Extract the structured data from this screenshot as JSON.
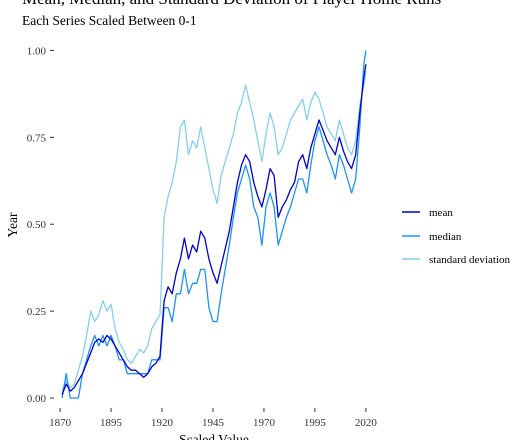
{
  "chart_data": {
    "type": "line",
    "title": "Mean, Median, and Standard Deviation of Player Home Runs",
    "subtitle": "Each Series Scaled Between 0-1",
    "xlabel": "Scaled Value",
    "ylabel": "Year",
    "xlim": [
      1868,
      2023
    ],
    "ylim": [
      -0.02,
      1.03
    ],
    "x_ticks": [
      1870,
      1895,
      1920,
      1945,
      1970,
      1995,
      2020
    ],
    "y_ticks": [
      "0.00",
      "0.25",
      "0.50",
      "0.75",
      "1.00"
    ],
    "y_tick_values": [
      0,
      0.25,
      0.5,
      0.75,
      1
    ],
    "grid": false,
    "legend_position": "right",
    "series": [
      {
        "name": "mean",
        "color": "#0000cd",
        "x": [
          1871,
          1873,
          1875,
          1877,
          1879,
          1881,
          1883,
          1885,
          1887,
          1889,
          1891,
          1893,
          1895,
          1897,
          1899,
          1901,
          1903,
          1905,
          1907,
          1909,
          1911,
          1913,
          1915,
          1917,
          1919,
          1921,
          1923,
          1925,
          1927,
          1929,
          1931,
          1933,
          1935,
          1937,
          1939,
          1941,
          1943,
          1945,
          1947,
          1949,
          1951,
          1953,
          1955,
          1957,
          1959,
          1961,
          1963,
          1965,
          1967,
          1969,
          1971,
          1973,
          1975,
          1977,
          1979,
          1981,
          1983,
          1985,
          1987,
          1989,
          1991,
          1993,
          1995,
          1997,
          1999,
          2001,
          2003,
          2005,
          2007,
          2009,
          2011,
          2013,
          2015,
          2017,
          2019,
          2020
        ],
        "values": [
          0.01,
          0.04,
          0.02,
          0.03,
          0.05,
          0.07,
          0.1,
          0.13,
          0.16,
          0.17,
          0.16,
          0.18,
          0.17,
          0.15,
          0.13,
          0.11,
          0.09,
          0.08,
          0.08,
          0.07,
          0.06,
          0.07,
          0.09,
          0.1,
          0.12,
          0.28,
          0.32,
          0.3,
          0.36,
          0.4,
          0.46,
          0.4,
          0.44,
          0.42,
          0.48,
          0.46,
          0.4,
          0.36,
          0.33,
          0.38,
          0.43,
          0.48,
          0.55,
          0.62,
          0.67,
          0.7,
          0.68,
          0.62,
          0.58,
          0.55,
          0.6,
          0.66,
          0.64,
          0.52,
          0.55,
          0.57,
          0.6,
          0.62,
          0.68,
          0.7,
          0.66,
          0.72,
          0.76,
          0.8,
          0.77,
          0.74,
          0.72,
          0.7,
          0.75,
          0.71,
          0.68,
          0.66,
          0.7,
          0.82,
          0.92,
          0.96
        ]
      },
      {
        "name": "median",
        "color": "#1e90ff",
        "x": [
          1871,
          1873,
          1875,
          1877,
          1879,
          1881,
          1883,
          1885,
          1887,
          1889,
          1891,
          1893,
          1895,
          1897,
          1899,
          1901,
          1903,
          1905,
          1907,
          1909,
          1911,
          1913,
          1915,
          1917,
          1919,
          1921,
          1923,
          1925,
          1927,
          1929,
          1931,
          1933,
          1935,
          1937,
          1939,
          1941,
          1943,
          1945,
          1947,
          1949,
          1951,
          1953,
          1955,
          1957,
          1959,
          1961,
          1963,
          1965,
          1967,
          1969,
          1971,
          1973,
          1975,
          1977,
          1979,
          1981,
          1983,
          1985,
          1987,
          1989,
          1991,
          1993,
          1995,
          1997,
          1999,
          2001,
          2003,
          2005,
          2007,
          2009,
          2011,
          2013,
          2015,
          2017,
          2019,
          2020
        ],
        "values": [
          0.0,
          0.07,
          0.0,
          0.0,
          0.0,
          0.07,
          0.11,
          0.15,
          0.18,
          0.15,
          0.18,
          0.15,
          0.18,
          0.15,
          0.11,
          0.11,
          0.07,
          0.07,
          0.07,
          0.07,
          0.07,
          0.07,
          0.11,
          0.11,
          0.11,
          0.26,
          0.26,
          0.22,
          0.3,
          0.3,
          0.37,
          0.3,
          0.33,
          0.33,
          0.37,
          0.37,
          0.26,
          0.22,
          0.22,
          0.3,
          0.37,
          0.44,
          0.52,
          0.59,
          0.63,
          0.67,
          0.63,
          0.55,
          0.52,
          0.44,
          0.55,
          0.59,
          0.55,
          0.44,
          0.48,
          0.52,
          0.55,
          0.59,
          0.63,
          0.63,
          0.59,
          0.67,
          0.74,
          0.78,
          0.74,
          0.7,
          0.67,
          0.63,
          0.7,
          0.67,
          0.63,
          0.59,
          0.63,
          0.78,
          0.96,
          1.0
        ]
      },
      {
        "name": "standard deviation",
        "color": "#87ceeb",
        "x": [
          1871,
          1873,
          1875,
          1877,
          1879,
          1881,
          1883,
          1885,
          1887,
          1889,
          1891,
          1893,
          1895,
          1897,
          1899,
          1901,
          1903,
          1905,
          1907,
          1909,
          1911,
          1913,
          1915,
          1917,
          1919,
          1921,
          1923,
          1925,
          1927,
          1929,
          1931,
          1933,
          1935,
          1937,
          1939,
          1941,
          1943,
          1945,
          1947,
          1949,
          1951,
          1953,
          1955,
          1957,
          1959,
          1961,
          1963,
          1965,
          1967,
          1969,
          1971,
          1973,
          1975,
          1977,
          1979,
          1981,
          1983,
          1985,
          1987,
          1989,
          1991,
          1993,
          1995,
          1997,
          1999,
          2001,
          2003,
          2005,
          2007,
          2009,
          2011,
          2013,
          2015,
          2017,
          2019,
          2020
        ],
        "values": [
          0.02,
          0.05,
          0.03,
          0.04,
          0.08,
          0.12,
          0.18,
          0.25,
          0.22,
          0.24,
          0.28,
          0.25,
          0.27,
          0.2,
          0.16,
          0.14,
          0.11,
          0.1,
          0.12,
          0.14,
          0.13,
          0.15,
          0.2,
          0.22,
          0.24,
          0.52,
          0.58,
          0.62,
          0.68,
          0.78,
          0.8,
          0.7,
          0.74,
          0.72,
          0.78,
          0.72,
          0.66,
          0.6,
          0.56,
          0.64,
          0.68,
          0.72,
          0.76,
          0.82,
          0.85,
          0.9,
          0.85,
          0.8,
          0.74,
          0.68,
          0.76,
          0.82,
          0.78,
          0.7,
          0.72,
          0.76,
          0.8,
          0.82,
          0.84,
          0.86,
          0.8,
          0.85,
          0.88,
          0.86,
          0.82,
          0.78,
          0.76,
          0.74,
          0.8,
          0.76,
          0.72,
          0.7,
          0.74,
          0.84,
          0.9,
          0.94
        ]
      }
    ]
  }
}
